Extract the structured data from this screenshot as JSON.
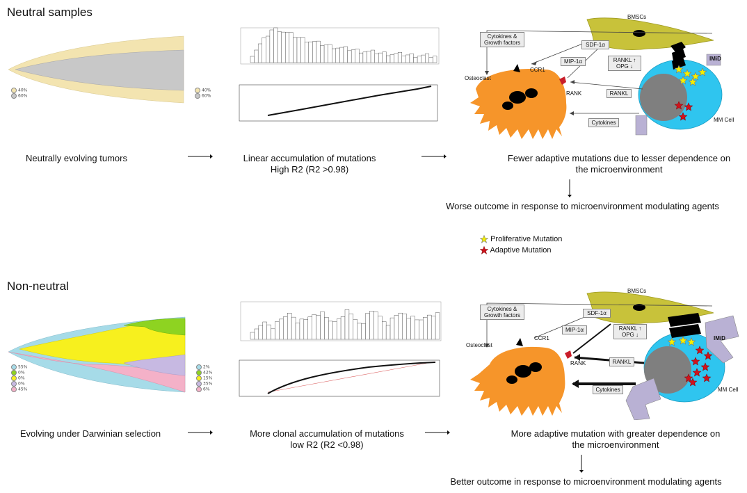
{
  "sections": {
    "neutral": {
      "title": "Neutral samples",
      "fish_left_legend": [
        "40%",
        "60%"
      ],
      "fish_right_legend": [
        "40%",
        "60%"
      ],
      "caption1": "Neutrally evolving tumors",
      "caption2_line1": "Linear accumulation of mutations",
      "caption2_line2": "High R2 (R2 >0.98)",
      "caption3_line1": "Fewer adaptive mutations due to lesser dependence on",
      "caption3_line2": "the microenvironment",
      "outcome": "Worse outcome in response to microenvironment modulating agents",
      "colors": {
        "clone1": "#f3e4b0",
        "clone2": "#c8c8c8"
      }
    },
    "nonneutral": {
      "title": "Non-neutral",
      "fish_left_legend": [
        "55%",
        "0%",
        "0%",
        "0%",
        "45%"
      ],
      "fish_right_legend": [
        "2%",
        "42%",
        "15%",
        "35%",
        "6%"
      ],
      "legend_colors": [
        "#a6dbe8",
        "#8ed321",
        "#f7f01e",
        "#c7b9e2",
        "#f4b1c8"
      ],
      "caption1": "Evolving under Darwinian selection",
      "caption2_line1": "More clonal accumulation of mutations",
      "caption2_line2": "low R2 (R2 <0.98)",
      "caption3_line1": "More adaptive mutation with greater dependence on",
      "caption3_line2": "the microenvironment",
      "outcome": "Better outcome in response to microenvironment modulating agents"
    }
  },
  "diagram": {
    "bmsc": "BMSCs",
    "cytokines_growth": "Cytokines & Growth factors",
    "sdf": "SDF-1α",
    "mip": "MIP-1α",
    "ccr1": "CCR1",
    "osteoclast": "Osteoclast",
    "rank": "RANK",
    "rankl_opg": "RANKL ↑ OPG ↓",
    "rankl": "RANKL",
    "cytokines": "Cytokines",
    "imid": "IMiD",
    "mm_cell": "MM Cell"
  },
  "legend": {
    "proliferative": "Proliferative Mutation",
    "adaptive": "Adaptive Mutation"
  }
}
